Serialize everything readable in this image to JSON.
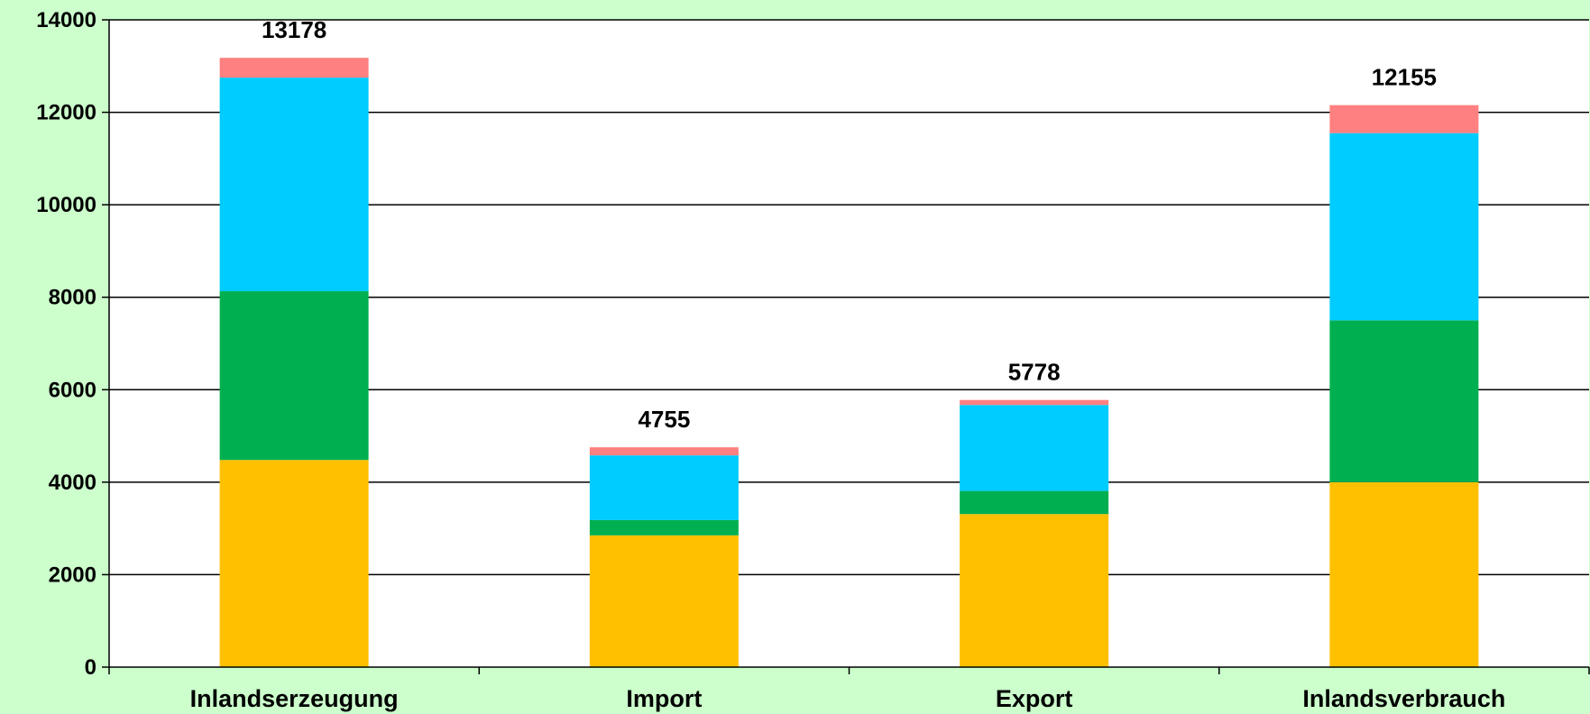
{
  "chart_data": {
    "type": "bar",
    "stacked": true,
    "categories": [
      "Inlandserzeugung",
      "Import",
      "Export",
      "Inlandsverbrauch"
    ],
    "series": [
      {
        "values": [
          4480,
          2850,
          3310,
          4000
        ],
        "color": "#ffc000"
      },
      {
        "values": [
          3650,
          330,
          500,
          3500
        ],
        "color": "#00b050"
      },
      {
        "values": [
          4620,
          1400,
          1860,
          4050
        ],
        "color": "#00ccff"
      },
      {
        "values": [
          428,
          175,
          108,
          605
        ],
        "color": "#ff8080"
      }
    ],
    "totals": [
      "13178",
      "4755",
      "5778",
      "12155"
    ],
    "y_ticks": [
      "0",
      "2000",
      "4000",
      "6000",
      "8000",
      "10000",
      "12000",
      "14000"
    ],
    "ylim": [
      0,
      14000
    ],
    "grid": true,
    "background": "#ccffcc",
    "plot_background": "#ffffff"
  }
}
